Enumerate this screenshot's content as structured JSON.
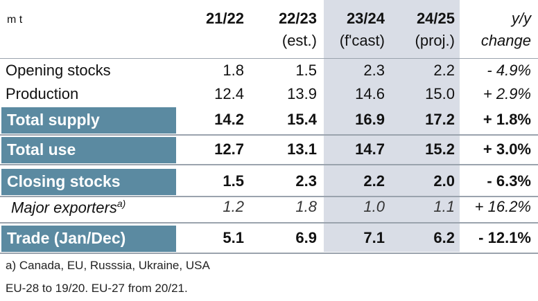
{
  "header": {
    "unit": "m t",
    "columns": [
      [
        "21/22"
      ],
      [
        "22/23",
        "(est.)"
      ],
      [
        "23/24",
        "(f'cast)"
      ],
      [
        "24/25",
        "(proj.)"
      ],
      [
        "y/y",
        "change"
      ]
    ]
  },
  "table": {
    "rows": [
      {
        "label": "Opening stocks",
        "style": "normal",
        "cells": [
          "1.8",
          "1.5",
          "2.3",
          "2.2",
          "- 4.9%"
        ]
      },
      {
        "label": "Production",
        "style": "normal",
        "cells": [
          "12.4",
          "13.9",
          "14.6",
          "15.0",
          "+ 2.9%"
        ]
      },
      {
        "label": "Total supply",
        "style": "box",
        "cells": [
          "14.2",
          "15.4",
          "16.9",
          "17.2",
          "+ 1.8%"
        ]
      },
      {
        "label": "Total use",
        "style": "box",
        "cells": [
          "12.7",
          "13.1",
          "14.7",
          "15.2",
          "+ 3.0%"
        ]
      },
      {
        "label": "Closing stocks",
        "style": "box",
        "cells": [
          "1.5",
          "2.3",
          "2.2",
          "2.0",
          "- 6.3%"
        ]
      },
      {
        "label": "Major exporters",
        "note": "a)",
        "style": "italic",
        "cells": [
          "1.2",
          "1.8",
          "1.0",
          "1.1",
          "+ 16.2%"
        ]
      },
      {
        "label": "Trade (Jan/Dec)",
        "style": "box",
        "cells": [
          "5.1",
          "6.9",
          "7.1",
          "6.2",
          "- 12.1%"
        ]
      }
    ]
  },
  "footnotes": [
    "a) Canada, EU, Russsia, Ukraine, USA",
    "EU-28 to 19/20. EU-27 from 20/21."
  ]
}
